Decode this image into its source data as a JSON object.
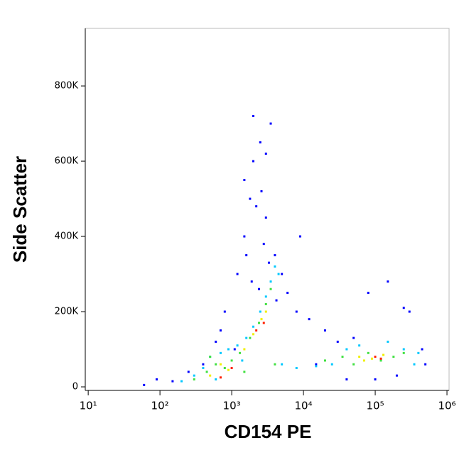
{
  "chart_data": {
    "type": "scatter",
    "xlabel": "CD154 PE",
    "ylabel": "Side Scatter",
    "xscale": "log",
    "xlim": [
      9.1,
      1070000
    ],
    "ylim": [
      -9400,
      953000
    ],
    "xticks": [
      {
        "value": 10,
        "label": "10¹"
      },
      {
        "value": 100,
        "label": "10²"
      },
      {
        "value": 1000,
        "label": "10³"
      },
      {
        "value": 10000,
        "label": "10⁴"
      },
      {
        "value": 100000,
        "label": "10⁵"
      },
      {
        "value": 1000000,
        "label": "10⁶"
      }
    ],
    "yticks": [
      0,
      {
        "value": 200000,
        "label": "200K"
      },
      {
        "value": 400000,
        "label": "400K"
      },
      {
        "value": 600000,
        "label": "600K"
      },
      {
        "value": 800000,
        "label": "800K"
      }
    ],
    "series": [
      {
        "color": "#0000ff",
        "x": [
          60,
          90,
          150,
          250,
          400,
          600,
          800,
          1200,
          1500,
          1800,
          2000,
          2500,
          3000,
          3500,
          4000,
          5000,
          6000,
          8000,
          12000,
          20000,
          30000,
          50000,
          80000,
          150000,
          300000,
          450000,
          1500,
          2200,
          2800,
          3300,
          1900,
          2600,
          4200,
          700,
          1100,
          9000,
          15000,
          40000,
          100000,
          200000,
          250000,
          500000,
          2000,
          3000,
          1600,
          2400
        ],
        "y": [
          5000,
          20000,
          15000,
          40000,
          60000,
          120000,
          200000,
          300000,
          400000,
          500000,
          600000,
          650000,
          450000,
          700000,
          350000,
          300000,
          250000,
          200000,
          180000,
          150000,
          120000,
          130000,
          250000,
          280000,
          200000,
          100000,
          550000,
          480000,
          380000,
          330000,
          280000,
          520000,
          230000,
          150000,
          100000,
          400000,
          60000,
          20000,
          20000,
          30000,
          210000,
          60000,
          720000,
          620000,
          350000,
          260000
        ]
      },
      {
        "color": "#00c8ff",
        "x": [
          200,
          300,
          400,
          500,
          700,
          900,
          1200,
          1600,
          2000,
          2500,
          3000,
          3500,
          4000,
          4500,
          5000,
          8000,
          15000,
          25000,
          40000,
          60000,
          150000,
          250000,
          350000,
          400000,
          600,
          1400
        ],
        "y": [
          15000,
          30000,
          50000,
          80000,
          90000,
          100000,
          110000,
          130000,
          160000,
          200000,
          240000,
          280000,
          320000,
          300000,
          60000,
          50000,
          55000,
          60000,
          100000,
          110000,
          120000,
          100000,
          60000,
          90000,
          20000,
          70000
        ]
      },
      {
        "color": "#40e040",
        "x": [
          300,
          450,
          600,
          800,
          1000,
          1300,
          1800,
          2400,
          3000,
          3500,
          20000,
          35000,
          50000,
          80000,
          120000,
          180000,
          250000,
          500,
          1500,
          4000
        ],
        "y": [
          20000,
          40000,
          60000,
          50000,
          70000,
          90000,
          130000,
          170000,
          220000,
          260000,
          70000,
          80000,
          60000,
          90000,
          70000,
          80000,
          90000,
          80000,
          40000,
          60000
        ]
      },
      {
        "color": "#f0f000",
        "x": [
          500,
          700,
          900,
          1500,
          2000,
          2600,
          3000,
          60000,
          90000,
          130000,
          70000
        ],
        "y": [
          30000,
          60000,
          45000,
          100000,
          140000,
          180000,
          200000,
          80000,
          75000,
          85000,
          70000
        ]
      },
      {
        "color": "#ff2000",
        "x": [
          700,
          1000,
          2200,
          2800,
          100000,
          120000
        ],
        "y": [
          25000,
          50000,
          150000,
          170000,
          80000,
          75000
        ]
      }
    ]
  }
}
